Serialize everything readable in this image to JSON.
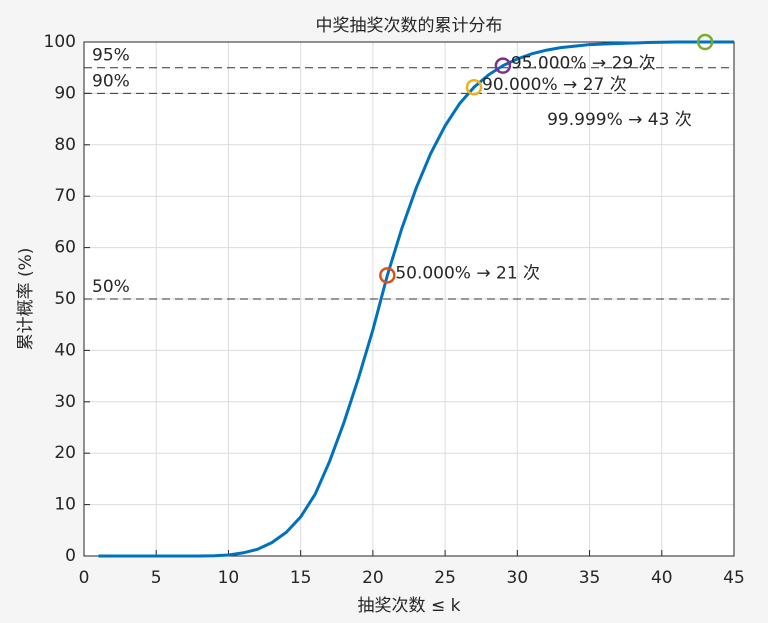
{
  "chart_data": {
    "type": "line",
    "title": "中奖抽奖次数的累计分布",
    "xlabel": "抽奖次数 ≤ k",
    "ylabel": "累计概率 (%)",
    "x": [
      1,
      2,
      3,
      4,
      5,
      6,
      7,
      8,
      9,
      10,
      11,
      12,
      13,
      14,
      15,
      16,
      17,
      18,
      19,
      20,
      21,
      22,
      23,
      24,
      25,
      26,
      27,
      28,
      29,
      30,
      31,
      32,
      33,
      34,
      35,
      36,
      37,
      38,
      39,
      40,
      41,
      42,
      43,
      44,
      45
    ],
    "series": [
      {
        "color": "#0072bd",
        "values": [
          0,
          0,
          0,
          0,
          0,
          0,
          0,
          0,
          0.05,
          0.2,
          0.6,
          1.3,
          2.6,
          4.6,
          7.6,
          12,
          18.4,
          26,
          34.6,
          44,
          54.6,
          63.7,
          71.6,
          78.3,
          83.7,
          88,
          91.2,
          93.6,
          95.4,
          96.7,
          97.7,
          98.4,
          98.9,
          99.2,
          99.5,
          99.6,
          99.7,
          99.8,
          99.9,
          99.95,
          99.99,
          99.995,
          99.999,
          99.9995,
          99.9998
        ]
      }
    ],
    "hlines": [
      {
        "value": 95,
        "label": "95%"
      },
      {
        "value": 90,
        "label": "90%"
      },
      {
        "value": 50,
        "label": "50%"
      }
    ],
    "markers": [
      {
        "x": 21,
        "y": 54.6,
        "color": "#d95319",
        "label": "50.000% → 21 次"
      },
      {
        "x": 27,
        "y": 91.2,
        "color": "#edb120",
        "label": "90.000% → 27 次"
      },
      {
        "x": 29,
        "y": 95.4,
        "color": "#7e2f8e",
        "label": "95.000% → 29 次"
      },
      {
        "x": 43,
        "y": 99.999,
        "color": "#77ac30",
        "label": "99.999% → 43 次"
      }
    ],
    "xlim": [
      0,
      45
    ],
    "xticks": [
      0,
      5,
      10,
      15,
      20,
      25,
      30,
      35,
      40,
      45
    ],
    "ylim": [
      0,
      100
    ],
    "yticks": [
      0,
      10,
      20,
      30,
      40,
      50,
      60,
      70,
      80,
      90,
      100
    ],
    "grid": true
  }
}
